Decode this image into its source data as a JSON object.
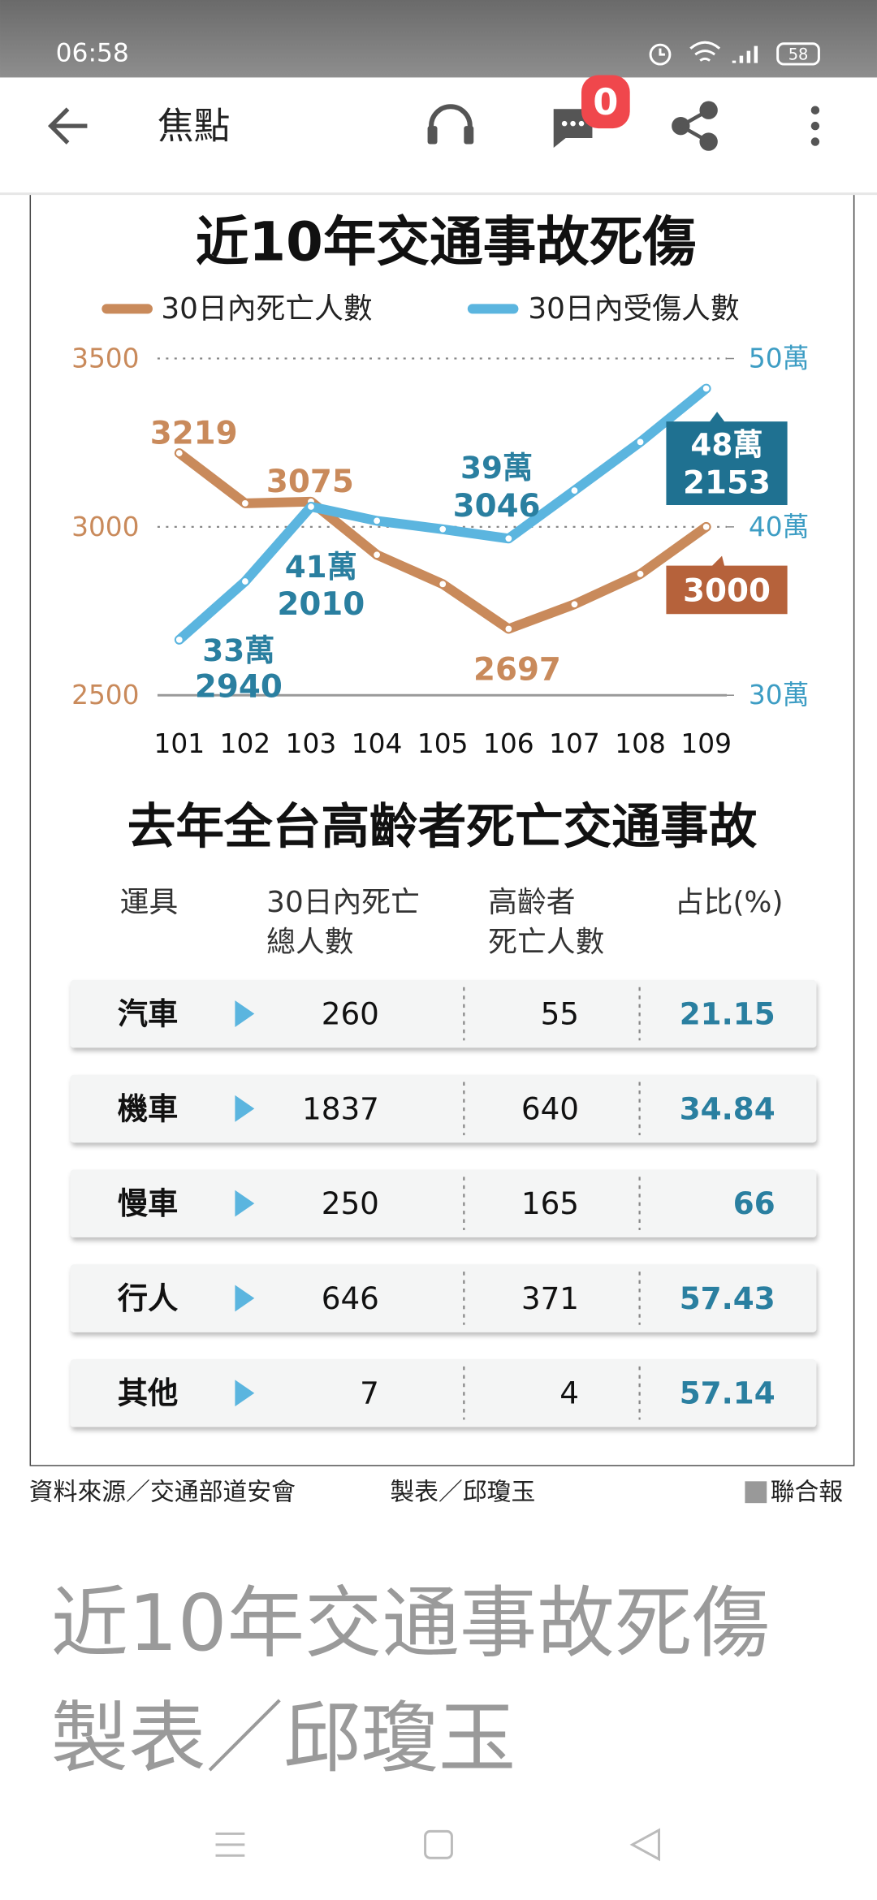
{
  "status_bar": {
    "time": "06:58",
    "battery": "58"
  },
  "app_bar": {
    "title": "焦點",
    "badge": "0"
  },
  "chart_data": {
    "type": "line",
    "title": "近10年交通事故死傷",
    "categories": [
      "101",
      "102",
      "103",
      "104",
      "105",
      "106",
      "107",
      "108",
      "109"
    ],
    "series": [
      {
        "name": "30日內死亡人數",
        "color": "#c98a5b",
        "values": [
          3219,
          3070,
          3075,
          2917,
          2830,
          2697,
          2770,
          2860,
          3000
        ]
      },
      {
        "name": "30日內受傷人數",
        "color": "#5bb5df",
        "axis": "y2",
        "values": [
          332940,
          367600,
          412010,
          403600,
          398600,
          393046,
          421600,
          450400,
          482153
        ],
        "value_labels": [
          [
            "33萬",
            "2940"
          ],
          null,
          [
            "41萬",
            "2010"
          ],
          null,
          null,
          [
            "39萬",
            "3046"
          ],
          null,
          null,
          [
            "48萬",
            "2153"
          ]
        ]
      }
    ],
    "ylim": [
      2500,
      3500
    ],
    "yticks": [
      2500,
      3000,
      3500
    ],
    "y2lim": [
      300000,
      500000
    ],
    "y2ticks": [
      {
        "value": 300000,
        "label": "30萬"
      },
      {
        "value": 400000,
        "label": "40萬"
      },
      {
        "value": 500000,
        "label": "50萬"
      }
    ],
    "grid": true
  },
  "table": {
    "title": "去年全台高齡者死亡交通事故",
    "header": [
      [
        "運具"
      ],
      [
        "30日內死亡",
        "總人數"
      ],
      [
        "高齡者",
        "死亡人數"
      ],
      [
        "占比(%)"
      ]
    ],
    "rows": [
      [
        "汽車",
        260,
        55,
        21.15
      ],
      [
        "機車",
        1837,
        640,
        34.84
      ],
      [
        "慢車",
        250,
        165,
        66
      ],
      [
        "行人",
        646,
        371,
        57.43
      ],
      [
        "其他",
        7,
        4,
        57.14
      ]
    ]
  },
  "footer": {
    "source": "資料來源／交通部道安會",
    "author": "製表／邱瓊玉",
    "publisher": "聯合報"
  },
  "caption": [
    "近10年交通事故死傷",
    "製表／邱瓊玉"
  ]
}
